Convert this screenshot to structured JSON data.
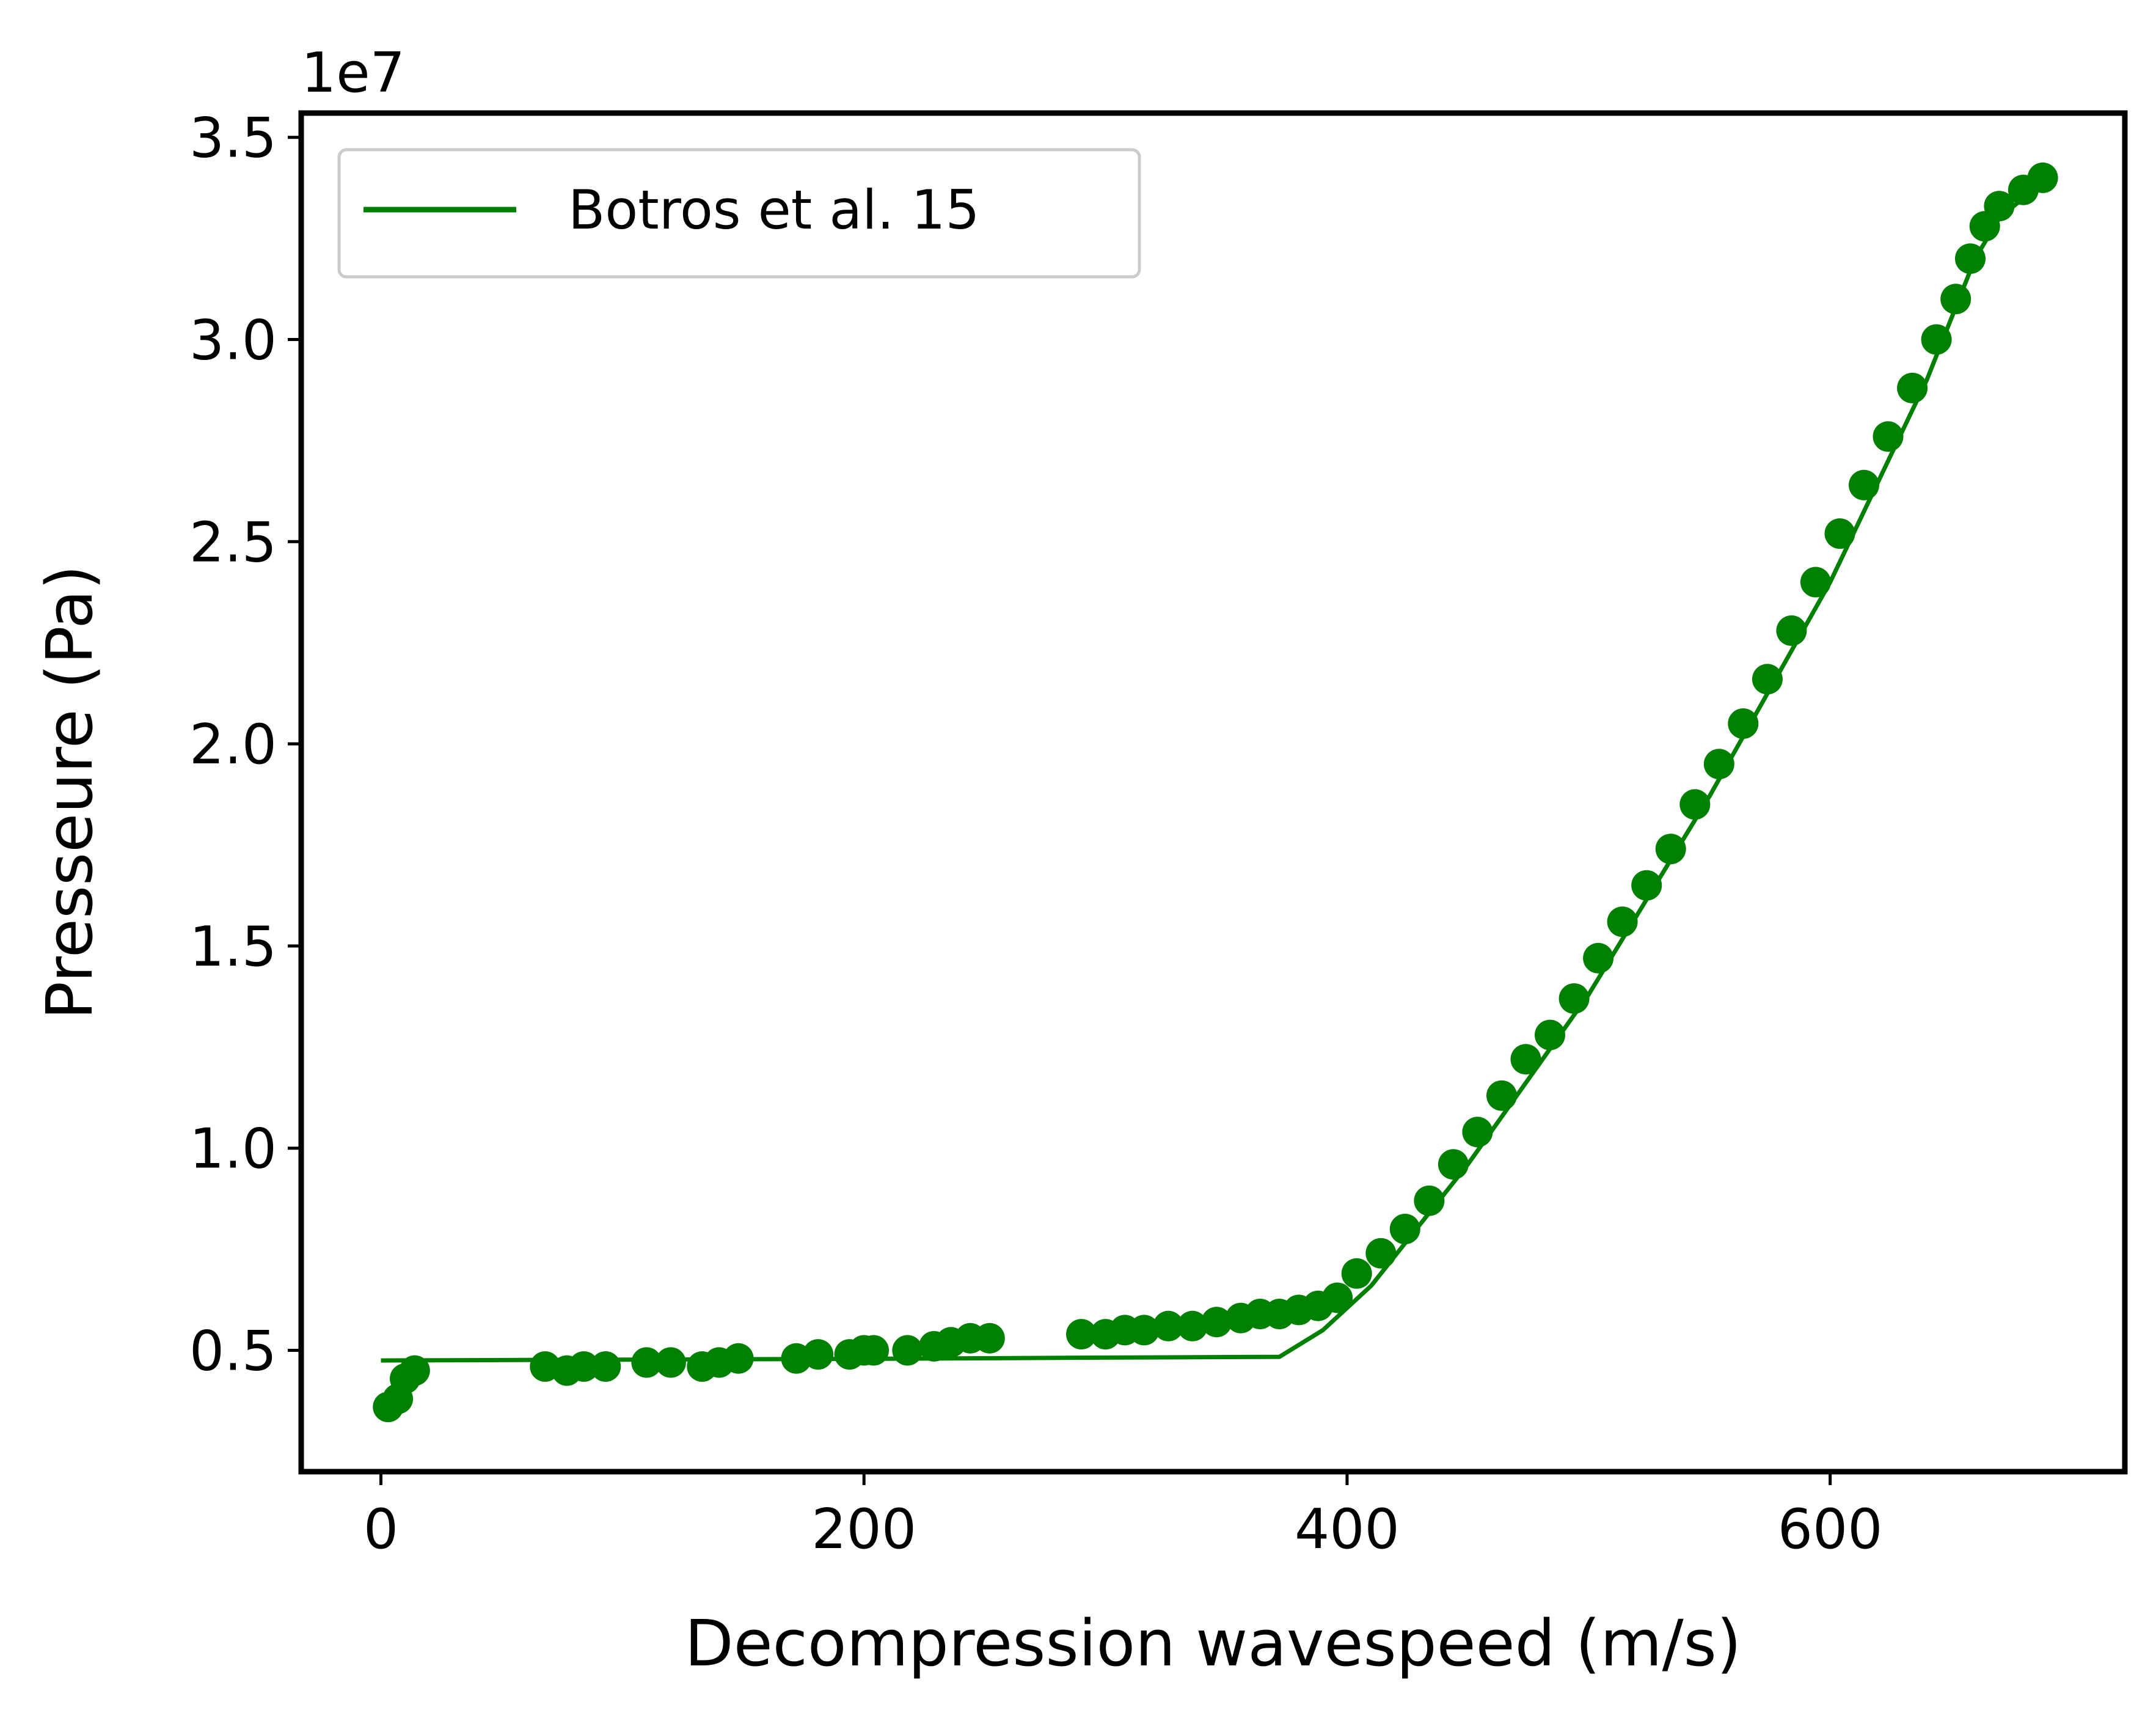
{
  "chart_data": {
    "type": "scatter",
    "xlabel": "Decompression wavespeed (m/s)",
    "ylabel": "Presseure (Pa)",
    "y_offset_label": "1e7",
    "xlim": [
      -33,
      722
    ],
    "ylim": [
      0.2,
      3.56
    ],
    "x_ticks": [
      0,
      200,
      400,
      600
    ],
    "x_tick_labels": [
      "0",
      "200",
      "400",
      "600"
    ],
    "y_ticks": [
      0.5,
      1.0,
      1.5,
      2.0,
      2.5,
      3.0,
      3.5
    ],
    "y_tick_labels": [
      "0.5",
      "1.0",
      "1.5",
      "2.0",
      "2.5",
      "3.0",
      "3.5"
    ],
    "grid": false,
    "legend_position": "top-left",
    "color": "#008000",
    "series": [
      {
        "name": "Botros et al. 15",
        "kind": "line",
        "x": [
          0,
          100,
          200,
          300,
          372,
          390,
          410,
          450,
          500,
          550,
          600,
          640,
          660,
          670,
          690
        ],
        "y": [
          0.475,
          0.477,
          0.479,
          0.482,
          0.484,
          0.55,
          0.66,
          0.96,
          1.38,
          1.87,
          2.4,
          2.9,
          3.2,
          3.3,
          3.4
        ]
      },
      {
        "kind": "scatter",
        "x": [
          3,
          7,
          10,
          14,
          68,
          77,
          84,
          93,
          110,
          120,
          133,
          140,
          148,
          172,
          181,
          194,
          200,
          204,
          218,
          229,
          236,
          244,
          252,
          290,
          300,
          308,
          316,
          326,
          336,
          346,
          356,
          364,
          372,
          380,
          388,
          396,
          404,
          414,
          424,
          434,
          444,
          454,
          464,
          474,
          484,
          494,
          504,
          514,
          524,
          534,
          544,
          554,
          564,
          574,
          584,
          594,
          604,
          614,
          624,
          634,
          644,
          652,
          658,
          664,
          670,
          680,
          688
        ],
        "y": [
          0.36,
          0.38,
          0.43,
          0.45,
          0.46,
          0.45,
          0.46,
          0.46,
          0.47,
          0.47,
          0.46,
          0.47,
          0.48,
          0.48,
          0.49,
          0.49,
          0.5,
          0.5,
          0.5,
          0.51,
          0.52,
          0.53,
          0.53,
          0.54,
          0.54,
          0.55,
          0.55,
          0.56,
          0.56,
          0.57,
          0.58,
          0.59,
          0.59,
          0.6,
          0.61,
          0.63,
          0.69,
          0.74,
          0.8,
          0.87,
          0.96,
          1.04,
          1.13,
          1.22,
          1.28,
          1.37,
          1.47,
          1.56,
          1.65,
          1.74,
          1.85,
          1.95,
          2.05,
          2.16,
          2.28,
          2.4,
          2.52,
          2.64,
          2.76,
          2.88,
          3.0,
          3.1,
          3.2,
          3.28,
          3.33,
          3.37,
          3.4
        ]
      }
    ]
  }
}
